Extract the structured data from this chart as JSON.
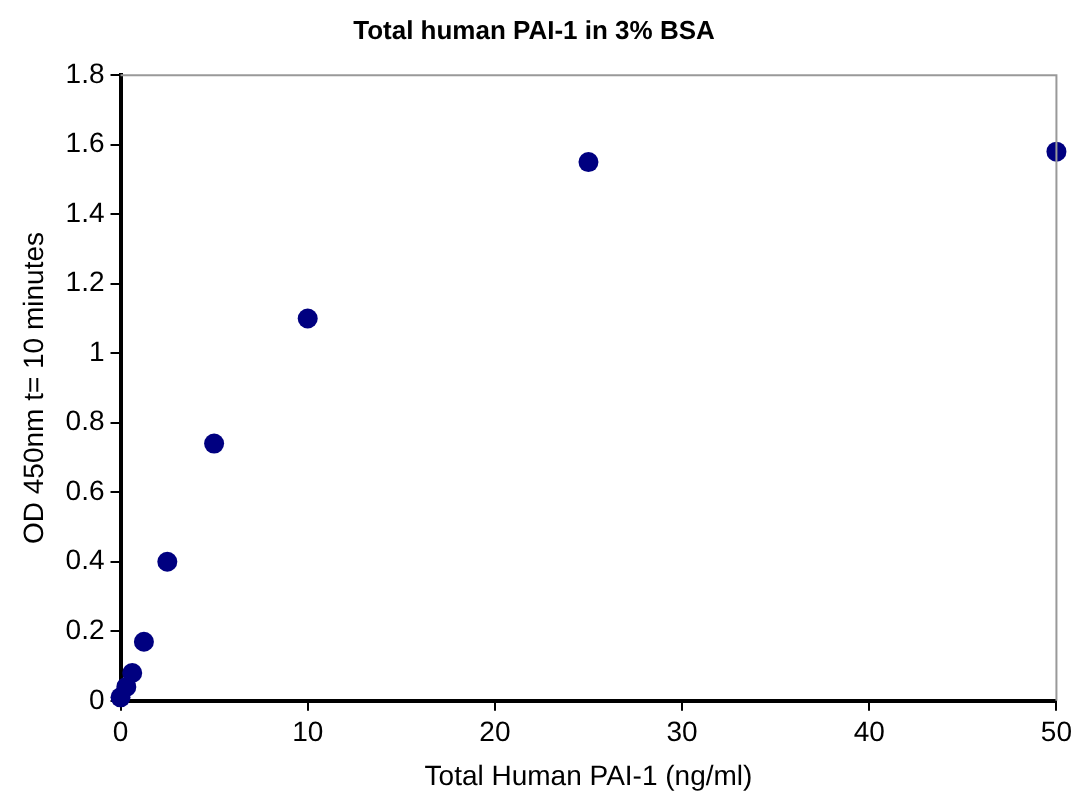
{
  "chart_data": {
    "type": "scatter",
    "title": "Total human PAI-1 in 3% BSA",
    "xlabel": "Total Human PAI-1 (ng/ml)",
    "ylabel": "OD 450nm t= 10 minutes",
    "x": [
      0,
      0.31,
      0.625,
      1.25,
      2.5,
      5,
      10,
      25,
      50
    ],
    "series": [
      {
        "color": "#000080",
        "values": [
          0.01,
          0.04,
          0.08,
          0.17,
          0.4,
          0.74,
          1.1,
          1.55,
          1.58
        ]
      }
    ],
    "xlim": [
      0,
      50
    ],
    "xticks": [
      0,
      10,
      20,
      30,
      40,
      50
    ],
    "ylim": [
      0,
      1.8
    ],
    "yticks": [
      0,
      0.2,
      0.4,
      0.6,
      0.8,
      1,
      1.2,
      1.4,
      1.6,
      1.8
    ],
    "grid": false,
    "legend": false,
    "marker": "circle"
  }
}
